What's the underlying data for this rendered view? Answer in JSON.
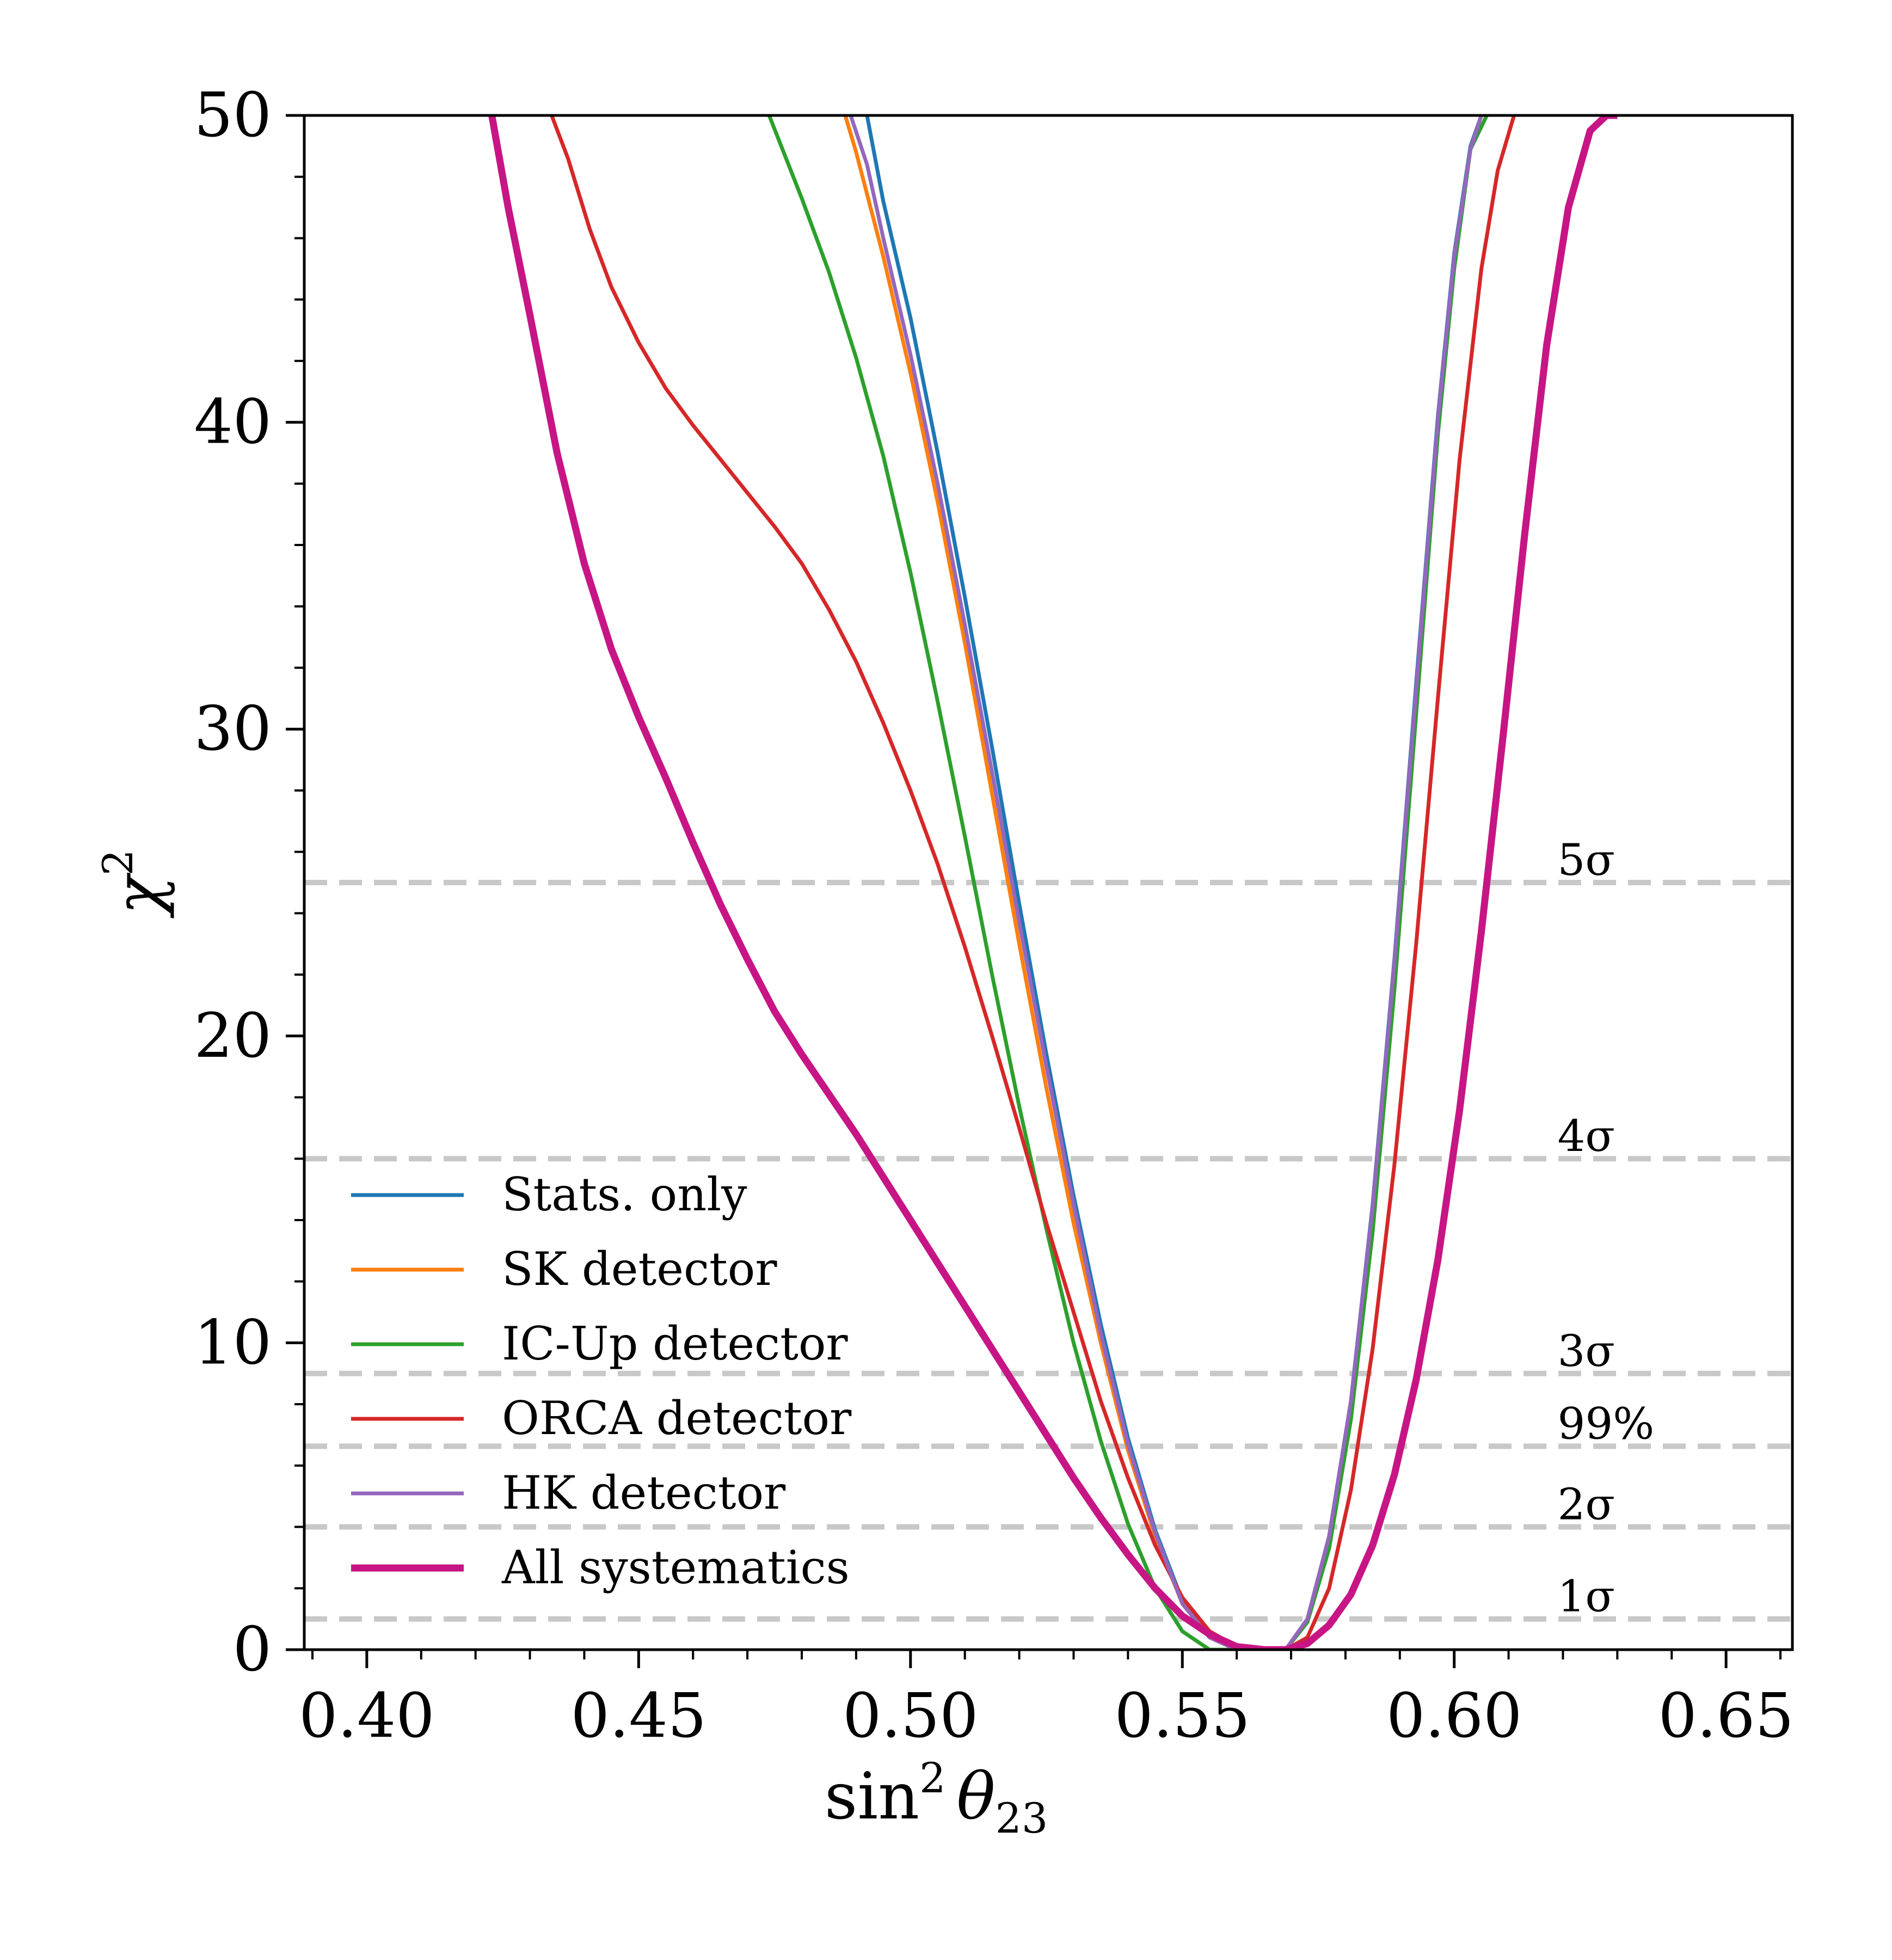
{
  "chart_data": {
    "type": "line",
    "title": "",
    "xlabel": "sin² θ₂₃",
    "xlabel_parts": {
      "base": "sin",
      "sup": "2",
      "var": "θ",
      "sub": "23"
    },
    "ylabel": "χ²",
    "ylabel_parts": {
      "base": "χ",
      "sup": "2"
    },
    "xlim": [
      0.3885,
      0.6622
    ],
    "ylim": [
      0,
      50
    ],
    "xticks": [
      0.4,
      0.45,
      0.5,
      0.55,
      0.6,
      0.65
    ],
    "xtick_labels": [
      "0.40",
      "0.45",
      "0.50",
      "0.55",
      "0.60",
      "0.65"
    ],
    "xminor_step": 0.01,
    "yticks": [
      0,
      10,
      20,
      30,
      40,
      50
    ],
    "ytick_labels": [
      "0",
      "10",
      "20",
      "30",
      "40",
      "50"
    ],
    "yminor_step": 2,
    "grid": false,
    "legend_position": "lower-left",
    "significance_lines": [
      {
        "label": "1σ",
        "value": 1.0
      },
      {
        "label": "2σ",
        "value": 4.0
      },
      {
        "label": "99%",
        "value": 6.63
      },
      {
        "label": "3σ",
        "value": 9.0
      },
      {
        "label": "4σ",
        "value": 16.0
      },
      {
        "label": "5σ",
        "value": 25.0
      }
    ],
    "series": [
      {
        "name": "Stats. only",
        "color": "#1f77b4",
        "width": 7,
        "x": [
          0.492,
          0.495,
          0.5,
          0.505,
          0.51,
          0.515,
          0.52,
          0.525,
          0.53,
          0.535,
          0.54,
          0.545,
          0.55,
          0.555,
          0.56,
          0.565,
          0.569,
          0.573,
          0.577,
          0.581,
          0.585,
          0.589,
          0.593,
          0.597,
          0.6,
          0.603,
          0.605
        ],
        "y": [
          50,
          47.2,
          43.4,
          39.0,
          34.3,
          29.4,
          24.3,
          19.4,
          14.8,
          10.6,
          6.9,
          3.9,
          1.6,
          0.4,
          0.0,
          0.0,
          0.0,
          1.0,
          3.7,
          8.1,
          14.5,
          22.5,
          31.5,
          40.2,
          45.5,
          49.0,
          50
        ]
      },
      {
        "name": "SK detector",
        "color": "#ff7f0e",
        "width": 7,
        "x": [
          0.488,
          0.49,
          0.495,
          0.5,
          0.505,
          0.51,
          0.515,
          0.52,
          0.525,
          0.53,
          0.535,
          0.54,
          0.545,
          0.55,
          0.555,
          0.56,
          0.565,
          0.569,
          0.573,
          0.577,
          0.581,
          0.585,
          0.589,
          0.593,
          0.597,
          0.6,
          0.603,
          0.605
        ],
        "y": [
          50,
          48.8,
          45.4,
          41.6,
          37.4,
          32.8,
          27.9,
          23.0,
          18.3,
          13.9,
          10.0,
          6.5,
          3.7,
          1.5,
          0.4,
          0.0,
          0.0,
          0.0,
          1.0,
          3.6,
          8.0,
          14.3,
          22.3,
          31.2,
          40.0,
          45.3,
          48.9,
          50
        ]
      },
      {
        "name": "IC-Up detector",
        "color": "#2ca02c",
        "width": 7,
        "x": [
          0.474,
          0.48,
          0.485,
          0.49,
          0.495,
          0.5,
          0.505,
          0.51,
          0.515,
          0.52,
          0.525,
          0.53,
          0.535,
          0.54,
          0.545,
          0.55,
          0.555,
          0.56,
          0.565,
          0.569,
          0.573,
          0.577,
          0.581,
          0.585,
          0.589,
          0.593,
          0.597,
          0.6,
          0.603,
          0.606
        ],
        "y": [
          50,
          47.3,
          44.9,
          42.1,
          38.9,
          35.1,
          30.9,
          26.5,
          22.0,
          17.7,
          13.7,
          10.0,
          6.8,
          4.1,
          2.0,
          0.6,
          0.0,
          0.0,
          0.0,
          0.0,
          0.9,
          3.3,
          7.5,
          13.6,
          21.5,
          30.5,
          39.6,
          45.0,
          48.9,
          50
        ]
      },
      {
        "name": "ORCA detector",
        "color": "#d62728",
        "width": 7,
        "x": [
          0.434,
          0.437,
          0.441,
          0.445,
          0.45,
          0.455,
          0.46,
          0.465,
          0.47,
          0.475,
          0.48,
          0.485,
          0.49,
          0.495,
          0.5,
          0.505,
          0.51,
          0.515,
          0.52,
          0.525,
          0.53,
          0.535,
          0.54,
          0.545,
          0.55,
          0.555,
          0.56,
          0.565,
          0.569,
          0.573,
          0.577,
          0.581,
          0.585,
          0.589,
          0.593,
          0.597,
          0.601,
          0.605,
          0.608,
          0.611
        ],
        "y": [
          50,
          48.6,
          46.3,
          44.4,
          42.6,
          41.1,
          39.9,
          38.8,
          37.7,
          36.6,
          35.4,
          33.9,
          32.2,
          30.2,
          28.0,
          25.6,
          22.9,
          20.0,
          17.0,
          13.9,
          11.0,
          8.1,
          5.6,
          3.4,
          1.7,
          0.6,
          0.1,
          0.0,
          0.0,
          0.4,
          2.0,
          5.2,
          9.8,
          15.8,
          23.0,
          31.0,
          38.8,
          45.0,
          48.2,
          50
        ]
      },
      {
        "name": "HK detector",
        "color": "#9467bd",
        "width": 7,
        "x": [
          0.489,
          0.492,
          0.495,
          0.5,
          0.505,
          0.51,
          0.515,
          0.52,
          0.525,
          0.53,
          0.535,
          0.54,
          0.545,
          0.55,
          0.555,
          0.56,
          0.565,
          0.569,
          0.573,
          0.577,
          0.581,
          0.585,
          0.589,
          0.593,
          0.597,
          0.6,
          0.603,
          0.605
        ],
        "y": [
          50,
          48.4,
          46.0,
          42.2,
          38.0,
          33.4,
          28.6,
          23.7,
          19.0,
          14.5,
          10.3,
          6.7,
          3.8,
          1.5,
          0.4,
          0.0,
          0.0,
          0.0,
          1.0,
          3.7,
          8.1,
          14.4,
          22.4,
          31.3,
          40.1,
          45.4,
          48.9,
          50
        ]
      },
      {
        "name": "All systematics",
        "color": "#c71585",
        "width": 13,
        "x": [
          0.423,
          0.426,
          0.43,
          0.435,
          0.44,
          0.445,
          0.45,
          0.455,
          0.46,
          0.465,
          0.47,
          0.475,
          0.48,
          0.485,
          0.49,
          0.495,
          0.5,
          0.505,
          0.51,
          0.515,
          0.52,
          0.525,
          0.53,
          0.535,
          0.54,
          0.545,
          0.55,
          0.555,
          0.56,
          0.565,
          0.569,
          0.573,
          0.577,
          0.581,
          0.585,
          0.589,
          0.593,
          0.597,
          0.601,
          0.605,
          0.609,
          0.613,
          0.617,
          0.621,
          0.625,
          0.628,
          0.63
        ],
        "y": [
          50,
          47.0,
          43.5,
          39.0,
          35.4,
          32.6,
          30.4,
          28.4,
          26.3,
          24.3,
          22.5,
          20.8,
          19.4,
          18.1,
          16.8,
          15.4,
          14.0,
          12.6,
          11.2,
          9.8,
          8.4,
          7.0,
          5.6,
          4.3,
          3.1,
          2.0,
          1.1,
          0.5,
          0.1,
          0.0,
          0.0,
          0.2,
          0.8,
          1.8,
          3.4,
          5.7,
          8.8,
          12.7,
          17.6,
          23.4,
          29.8,
          36.4,
          42.5,
          47.0,
          49.5,
          50,
          50
        ]
      }
    ]
  }
}
